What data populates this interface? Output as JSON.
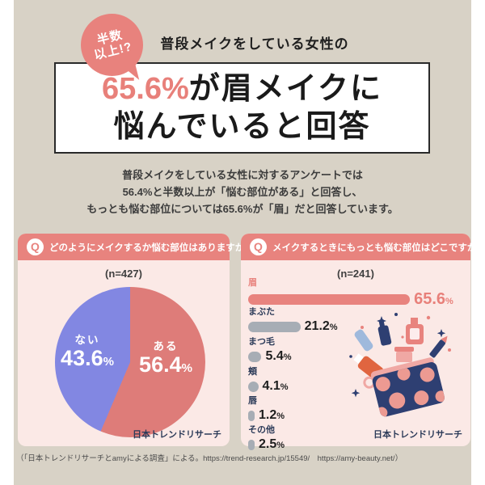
{
  "badge": {
    "line1": "半数",
    "line2": "以上!?"
  },
  "header": {
    "lead": "普段メイクをしている女性の",
    "headline_accent": "65.6%",
    "headline_rest": "が眉メイクに",
    "headline_line2": "悩んでいると回答"
  },
  "summary": {
    "line1": "普段メイクをしている女性に対するアンケートでは",
    "line2": "56.4%と半数以上が「悩む部位がある」と回答し、",
    "line3": "もっとも悩む部位については65.6%が「眉」だと回答しています。"
  },
  "pie_card": {
    "q_label": "Q",
    "question": "どのようにメイクするか悩む部位はありますか?",
    "sample": "(n=427)",
    "slices": [
      {
        "label": "ある",
        "value": "56.4",
        "unit": "%"
      },
      {
        "label": "ない",
        "value": "43.6",
        "unit": "%"
      }
    ],
    "source": "日本トレンドリサーチ"
  },
  "bar_card": {
    "q_label": "Q",
    "question": "メイクするときにもっとも悩む部位はどこですか?",
    "sample": "(n=241)",
    "bars": [
      {
        "label": "眉",
        "value": "65.6",
        "unit": "%",
        "highlight": true
      },
      {
        "label": "まぶた",
        "value": "21.2",
        "unit": "%",
        "highlight": false
      },
      {
        "label": "まつ毛",
        "value": "5.4",
        "unit": "%",
        "highlight": false
      },
      {
        "label": "頬",
        "value": "4.1",
        "unit": "%",
        "highlight": false
      },
      {
        "label": "唇",
        "value": "1.2",
        "unit": "%",
        "highlight": false
      },
      {
        "label": "その他",
        "value": "2.5",
        "unit": "%",
        "highlight": false
      }
    ],
    "source": "日本トレンドリサーチ"
  },
  "footer": {
    "citation": "（「日本トレンドリサーチとamyによる調査」による。https://trend-research.jp/15549/　https://amy-beauty.net/）"
  },
  "colors": {
    "accent": "#e8837e",
    "headline_accent": "#e8807a",
    "pie_yes": "#de7c79",
    "pie_no": "#8287e2",
    "bar_gray": "#a7adb5",
    "navy_text": "#2b3a58",
    "beige_bg": "#d8d2c6",
    "card_bg": "#fbe9e6"
  },
  "chart_data": [
    {
      "type": "pie",
      "title": "どのようにメイクするか悩む部位はありますか?",
      "subtitle": "(n=427)",
      "categories": [
        "ある",
        "ない"
      ],
      "values": [
        56.4,
        43.6
      ],
      "colors": [
        "#de7c79",
        "#8287e2"
      ],
      "start_angle": "12 o'clock, clockwise",
      "legend_position": "labels inside slices",
      "source": "日本トレンドリサーチ"
    },
    {
      "type": "bar",
      "title": "メイクするときにもっとも悩む部位はどこですか?",
      "subtitle": "(n=241)",
      "orientation": "horizontal",
      "categories": [
        "眉",
        "まぶた",
        "まつ毛",
        "頬",
        "唇",
        "その他"
      ],
      "values": [
        65.6,
        21.2,
        5.4,
        4.1,
        1.2,
        2.5
      ],
      "unit": "%",
      "xlim": [
        0,
        70
      ],
      "grid": false,
      "highlight_category": "眉",
      "source": "日本トレンドリサーチ"
    }
  ]
}
